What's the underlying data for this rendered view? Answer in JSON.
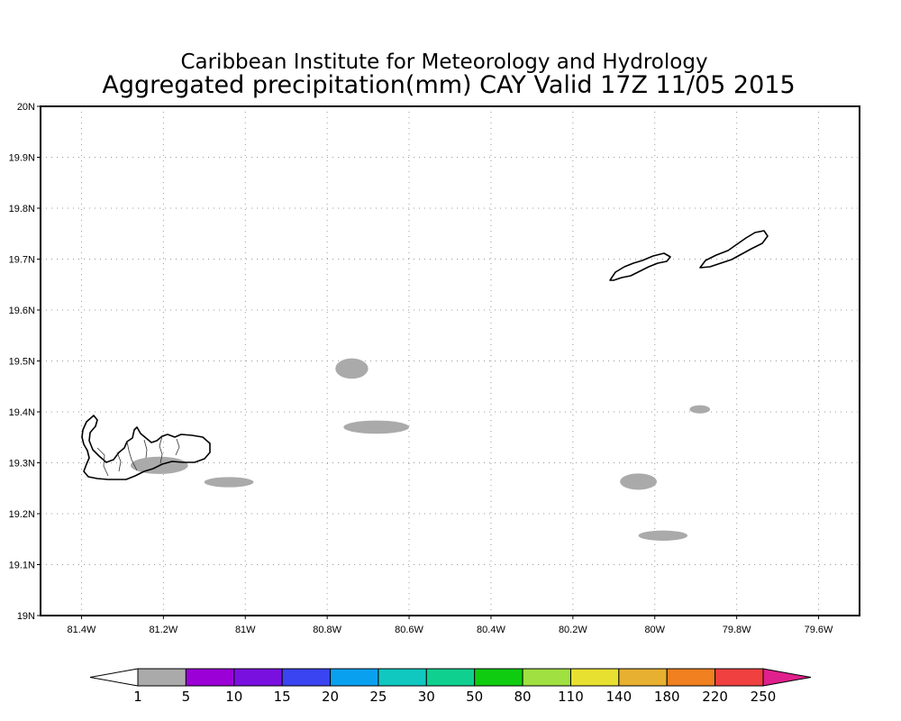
{
  "title": {
    "line1": "Caribbean Institute for Meteorology and Hydrology",
    "line2": "Aggregated precipitation(mm) CAY Valid 17Z 11/05 2015"
  },
  "map": {
    "lon_range": [
      -81.5,
      -79.5
    ],
    "lat_range": [
      19.0,
      20.0
    ],
    "grid": true,
    "lat_ticks": [
      {
        "value": 19.0,
        "label": "19N"
      },
      {
        "value": 19.1,
        "label": "19.1N"
      },
      {
        "value": 19.2,
        "label": "19.2N"
      },
      {
        "value": 19.3,
        "label": "19.3N"
      },
      {
        "value": 19.4,
        "label": "19.4N"
      },
      {
        "value": 19.5,
        "label": "19.5N"
      },
      {
        "value": 19.6,
        "label": "19.6N"
      },
      {
        "value": 19.7,
        "label": "19.7N"
      },
      {
        "value": 19.8,
        "label": "19.8N"
      },
      {
        "value": 19.9,
        "label": "19.9N"
      },
      {
        "value": 20.0,
        "label": "20N"
      }
    ],
    "lon_ticks": [
      {
        "value": -81.4,
        "label": "81.4W"
      },
      {
        "value": -81.2,
        "label": "81.2W"
      },
      {
        "value": -81.0,
        "label": "81W"
      },
      {
        "value": -80.8,
        "label": "80.8W"
      },
      {
        "value": -80.6,
        "label": "80.6W"
      },
      {
        "value": -80.4,
        "label": "80.4W"
      },
      {
        "value": -80.2,
        "label": "80.2W"
      },
      {
        "value": -80.0,
        "label": "80W"
      },
      {
        "value": -79.8,
        "label": "79.8W"
      },
      {
        "value": -79.6,
        "label": "79.6W"
      }
    ],
    "precip_areas": [
      {
        "category": "1-5",
        "center": [
          -81.21,
          19.295
        ],
        "radius": [
          0.07,
          0.017
        ]
      },
      {
        "category": "1-5",
        "center": [
          -81.04,
          19.262
        ],
        "radius": [
          0.06,
          0.01
        ]
      },
      {
        "category": "1-5",
        "center": [
          -80.74,
          19.485
        ],
        "radius": [
          0.04,
          0.02
        ]
      },
      {
        "category": "1-5",
        "center": [
          -80.68,
          19.37
        ],
        "radius": [
          0.08,
          0.013
        ]
      },
      {
        "category": "1-5",
        "center": [
          -80.04,
          19.263
        ],
        "radius": [
          0.045,
          0.016
        ]
      },
      {
        "category": "1-5",
        "center": [
          -79.98,
          19.157
        ],
        "radius": [
          0.06,
          0.01
        ]
      },
      {
        "category": "1-5",
        "center": [
          -79.89,
          19.405
        ],
        "radius": [
          0.025,
          0.008
        ]
      }
    ],
    "islands": [
      "Grand Cayman",
      "Little Cayman",
      "Cayman Brac"
    ]
  },
  "colorbar": {
    "bins": [
      {
        "color": "#aaaaaa"
      },
      {
        "color": "#9b00d6"
      },
      {
        "color": "#7a10e0"
      },
      {
        "color": "#3a44f0"
      },
      {
        "color": "#0aa0f0"
      },
      {
        "color": "#10c8c0"
      },
      {
        "color": "#10d090"
      },
      {
        "color": "#10cc10"
      },
      {
        "color": "#a0e040"
      },
      {
        "color": "#e8e030"
      },
      {
        "color": "#e8b030"
      },
      {
        "color": "#f08020"
      },
      {
        "color": "#f04040"
      }
    ],
    "low_color": "#ffffff",
    "high_color": "#e0208c",
    "labels": [
      "1",
      "5",
      "10",
      "15",
      "20",
      "25",
      "30",
      "50",
      "80",
      "110",
      "140",
      "180",
      "220",
      "250"
    ]
  }
}
